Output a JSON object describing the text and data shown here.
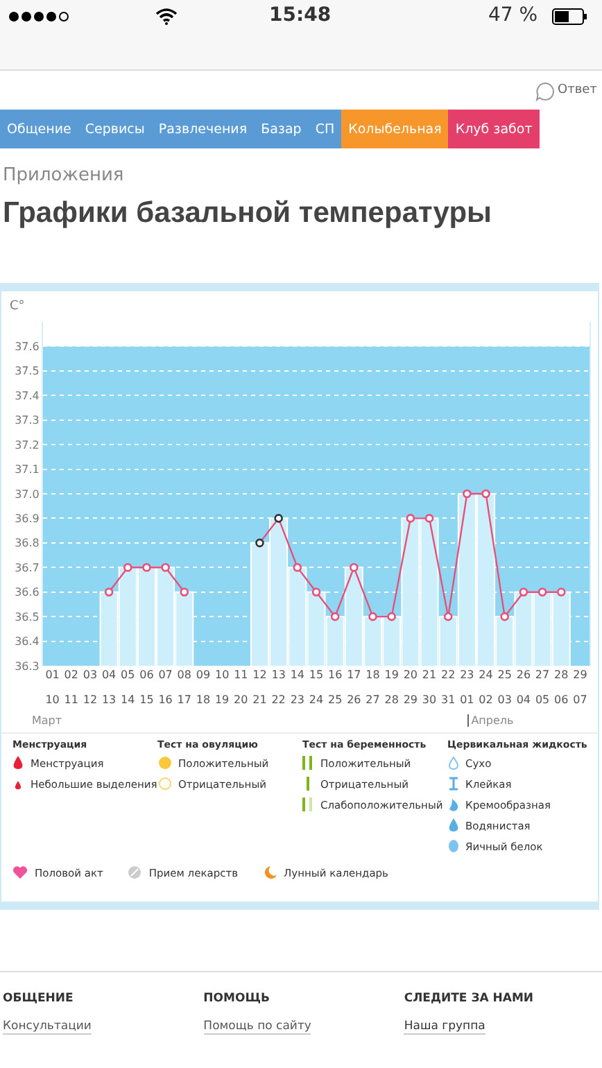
{
  "chart_data": {
    "type": "bar",
    "title": "Графики базальной температуры",
    "ylabel": "C°",
    "categories": [
      "01",
      "02",
      "03",
      "04",
      "05",
      "06",
      "07",
      "08",
      "09",
      "10",
      "11",
      "12",
      "13",
      "14",
      "15",
      "16",
      "17",
      "18",
      "19",
      "20",
      "21",
      "22",
      "23",
      "24",
      "25",
      "26",
      "27",
      "28",
      "29"
    ],
    "series": [
      {
        "color": "#cdeefb",
        "values": [
          null,
          null,
          null,
          36.6,
          36.7,
          36.7,
          36.7,
          36.6,
          null,
          null,
          null,
          36.8,
          36.9,
          36.7,
          36.6,
          36.5,
          36.7,
          36.5,
          36.5,
          36.9,
          36.9,
          36.5,
          37.0,
          37.0,
          36.5,
          36.6,
          36.6,
          36.6,
          null
        ]
      },
      {
        "type": "line",
        "color": "#e8507a",
        "colors": [
          "#e8507a",
          "#e8507a",
          "#e8507a",
          "#e8507a",
          "#e8507a",
          "#e8507a",
          "#e8507a",
          "#e8507a",
          "#e8507a",
          "#e8507a",
          "#e8507a",
          "#333333",
          "#333333",
          "#e8507a",
          "#e8507a",
          "#e8507a",
          "#e8507a",
          "#e8507a",
          "#e8507a",
          "#e8507a",
          "#e8507a",
          "#e8507a",
          "#e8507a",
          "#e8507a",
          "#e8507a",
          "#e8507a",
          "#e8507a",
          "#e8507a",
          "#e8507a"
        ],
        "values": [
          null,
          null,
          null,
          36.6,
          36.7,
          36.7,
          36.7,
          36.6,
          null,
          null,
          null,
          36.8,
          36.9,
          36.7,
          36.6,
          36.5,
          36.7,
          36.5,
          36.5,
          36.9,
          36.9,
          36.5,
          37.0,
          37.0,
          36.5,
          36.6,
          36.6,
          36.6,
          null
        ]
      }
    ],
    "ylim": [
      36.3,
      37.7
    ],
    "yticks": [
      {
        "value": 36.3,
        "label": "36.3"
      },
      {
        "value": 36.4,
        "label": "36.4"
      },
      {
        "value": 36.5,
        "label": "36.5"
      },
      {
        "value": 36.6,
        "label": "36.6"
      },
      {
        "value": 36.7,
        "label": "36.7"
      },
      {
        "value": 36.8,
        "label": "36.8"
      },
      {
        "value": 36.9,
        "label": "36.9"
      },
      {
        "value": 37.0,
        "label": "37.0"
      },
      {
        "value": 37.1,
        "label": "37.1"
      },
      {
        "value": 37.2,
        "label": "37.2"
      },
      {
        "value": 37.3,
        "label": "37.3"
      },
      {
        "value": 37.4,
        "label": "37.4"
      },
      {
        "value": 37.5,
        "label": "37.5"
      },
      {
        "value": 37.6,
        "label": "37.6"
      }
    ],
    "bands": [
      {
        "axis": "y",
        "from": 36.3,
        "to": 37.6,
        "color": "#8fd6f2"
      }
    ],
    "grid": "y",
    "marker": "circle",
    "annotations": [
      "15:48",
      "47 %",
      "Ответ",
      "Общение",
      "Сервисы",
      "Развлечения",
      "Базар",
      "СП",
      "Колыбельная",
      "Клуб забот",
      "Приложения",
      "10",
      "11",
      "12",
      "13",
      "14",
      "15",
      "16",
      "17",
      "18",
      "19",
      "20",
      "21",
      "22",
      "23",
      "24",
      "25",
      "26",
      "27",
      "28",
      "29",
      "30",
      "31",
      "01",
      "02",
      "03",
      "04",
      "05",
      "06",
      "07",
      "Март",
      "Апрель",
      "Менструация",
      "Менструация",
      "Небольшие выделения",
      "Тест на овуляцию",
      "Положительный",
      "Отрицательный",
      "Тест на беременность",
      "Положительный",
      "Отрицательный",
      "Слабоположительный",
      "Цервикальная жидкость",
      "Сухо",
      "Клейкая",
      "Кремообразная",
      "Водянистая",
      "Яичный белок",
      "Половой акт",
      "Прием лекарств",
      "Лунный календарь",
      "ОБЩЕНИЕ",
      "Консультации",
      "ПОМОЩЬ",
      "Помощь по сайту",
      "СЛЕДИТЕ ЗА НАМИ",
      "Наша группа"
    ]
  }
}
